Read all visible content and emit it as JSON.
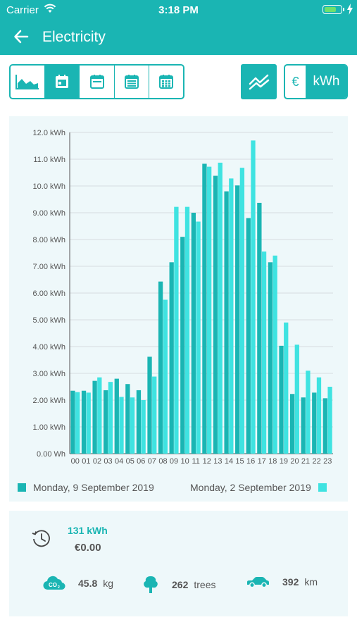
{
  "status_bar": {
    "carrier": "Carrier",
    "time": "3:18 PM"
  },
  "nav": {
    "title": "Electricity"
  },
  "toolbar": {
    "period_buttons": [
      "area-chart-icon",
      "day-calendar-icon",
      "week-calendar-icon",
      "month-calendar-icon",
      "year-calendar-icon"
    ],
    "active_period": 1,
    "unit_euro": "€",
    "unit_kwh": "kWh"
  },
  "colors": {
    "accent": "#1ab5b3",
    "series_1": "#1ab5b3",
    "series_2": "#3fe3e1",
    "card_bg": "#eef8fa"
  },
  "chart_data": {
    "type": "bar",
    "categories": [
      "00",
      "01",
      "02",
      "03",
      "04",
      "05",
      "06",
      "07",
      "08",
      "09",
      "10",
      "11",
      "12",
      "13",
      "14",
      "15",
      "16",
      "17",
      "18",
      "19",
      "20",
      "21",
      "22",
      "23"
    ],
    "series": [
      {
        "name": "Monday, 9 September 2019",
        "values": [
          2.35,
          2.35,
          2.72,
          2.37,
          2.8,
          2.6,
          2.37,
          3.62,
          6.43,
          7.15,
          8.1,
          9.0,
          10.83,
          10.38,
          9.8,
          10.02,
          8.8,
          9.37,
          7.15,
          4.03,
          2.23,
          2.1,
          2.28,
          2.07
        ]
      },
      {
        "name": "Monday, 2 September 2019",
        "values": [
          2.3,
          2.28,
          2.85,
          2.68,
          2.12,
          2.1,
          2.0,
          2.88,
          5.75,
          9.22,
          9.22,
          8.67,
          10.72,
          10.87,
          10.28,
          10.68,
          11.7,
          7.55,
          7.4,
          4.9,
          4.07,
          3.1,
          2.85,
          2.5
        ]
      }
    ],
    "y_tick_labels": [
      "0.00 Wh",
      "1.00 kWh",
      "2.00 kWh",
      "3.00 kWh",
      "4.00 kWh",
      "5.00 kWh",
      "6.00 kWh",
      "7.00 kWh",
      "8.00 kWh",
      "9.00 kWh",
      "10.0 kWh",
      "11.0 kWh",
      "12.0 kWh"
    ],
    "ylim": [
      0,
      12
    ],
    "grid": true,
    "legend_placement": "bottom"
  },
  "legend": {
    "series_1_label": "Monday, 9 September 2019",
    "series_2_label": "Monday, 2 September 2019"
  },
  "summary": {
    "energy": "131 kWh",
    "cost": "€0.00",
    "co2_value": "45.8",
    "co2_unit": "kg",
    "trees_value": "262",
    "trees_unit": "trees",
    "car_value": "392",
    "car_unit": "km"
  }
}
